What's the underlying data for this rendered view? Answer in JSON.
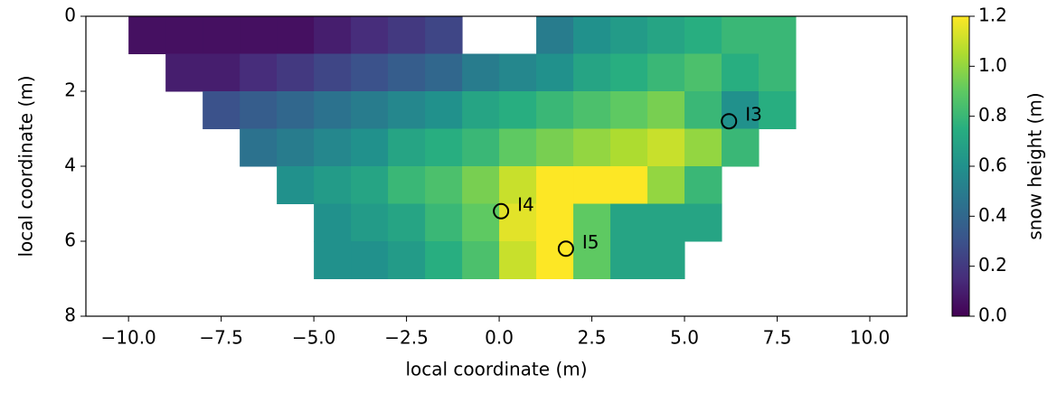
{
  "chart_data": {
    "type": "heatmap",
    "xlabel": "local coordinate (m)",
    "ylabel": "local coordinate (m)",
    "xlim": [
      -11.15,
      11.0
    ],
    "ylim": [
      8,
      0
    ],
    "xticks": [
      {
        "value": -10,
        "label": "−10.0"
      },
      {
        "value": -7.5,
        "label": "−7.5"
      },
      {
        "value": -5,
        "label": "−5.0"
      },
      {
        "value": -2.5,
        "label": "−2.5"
      },
      {
        "value": 0,
        "label": "0.0"
      },
      2.5,
      {
        "value": 5,
        "label": "5.0"
      },
      7.5,
      {
        "value": 10,
        "label": "10.0"
      }
    ],
    "yticks": [
      0,
      2,
      4,
      6,
      8
    ],
    "grid": false,
    "xbins": [
      -10,
      -9,
      -8,
      -7,
      -6,
      -5,
      -4,
      -3,
      -2,
      -1,
      0,
      1,
      2,
      3,
      4,
      5,
      6,
      7,
      8,
      9
    ],
    "ybins": [
      0,
      1,
      2,
      3,
      4,
      5,
      6,
      7
    ],
    "values": [
      [
        0.05,
        0.05,
        0.05,
        0.05,
        0.05,
        0.1,
        0.15,
        0.2,
        0.25,
        null,
        null,
        0.5,
        0.6,
        0.65,
        0.7,
        0.75,
        0.8,
        0.8,
        null
      ],
      [
        null,
        0.1,
        0.1,
        0.15,
        0.2,
        0.25,
        0.3,
        0.35,
        0.4,
        0.5,
        0.55,
        0.6,
        0.7,
        0.75,
        0.8,
        0.85,
        0.75,
        0.8,
        null
      ],
      [
        null,
        null,
        0.3,
        0.35,
        0.4,
        0.45,
        0.5,
        0.55,
        0.6,
        0.7,
        0.75,
        0.8,
        0.85,
        0.9,
        0.95,
        0.8,
        0.6,
        0.75,
        null
      ],
      [
        null,
        null,
        null,
        0.45,
        0.5,
        0.55,
        0.6,
        0.7,
        0.75,
        0.8,
        0.9,
        0.95,
        1.0,
        1.05,
        1.1,
        1.0,
        0.8,
        null,
        null
      ],
      [
        null,
        null,
        null,
        null,
        0.6,
        0.65,
        0.7,
        0.8,
        0.85,
        0.95,
        1.1,
        1.2,
        1.2,
        1.2,
        1.0,
        0.8,
        null,
        null,
        null
      ],
      [
        null,
        null,
        null,
        null,
        null,
        0.6,
        0.65,
        0.7,
        0.8,
        0.9,
        1.15,
        1.2,
        0.9,
        0.7,
        0.7,
        0.7,
        null,
        null,
        null
      ],
      [
        null,
        null,
        null,
        null,
        null,
        0.6,
        0.6,
        0.65,
        0.75,
        0.85,
        1.1,
        1.2,
        0.9,
        0.7,
        0.7,
        null,
        null,
        null,
        null
      ]
    ],
    "colormap": [
      "#440154",
      "#472d7b",
      "#3b528b",
      "#2c728e",
      "#21918c",
      "#28ae80",
      "#5ec962",
      "#addc30",
      "#fde725"
    ],
    "colorbar": {
      "label": "snow height (m)",
      "lim": [
        0,
        1.2
      ],
      "ticks": [
        {
          "value": 0,
          "label": "0.0"
        },
        0.2,
        0.4,
        0.6,
        0.8,
        {
          "value": 1.0,
          "label": "1.0"
        },
        1.2
      ]
    },
    "points": [
      {
        "name": "I3",
        "x": 6.2,
        "y": 2.8
      },
      {
        "name": "I4",
        "x": 0.05,
        "y": 5.2
      },
      {
        "name": "I5",
        "x": 1.8,
        "y": 6.2
      }
    ],
    "point_color": "#000000"
  }
}
